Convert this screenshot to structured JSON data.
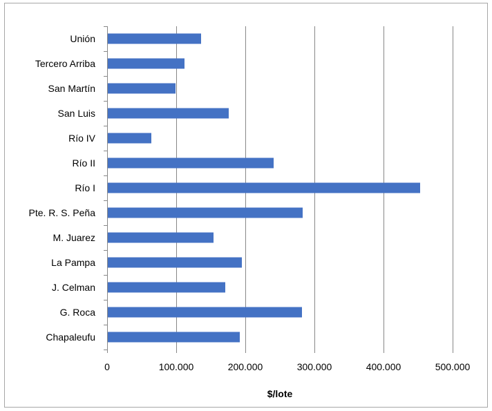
{
  "chart_data": {
    "type": "bar",
    "orientation": "horizontal",
    "categories": [
      "Unión",
      "Tercero Arriba",
      "San Martín",
      "San Luis",
      "Río IV",
      "Río II",
      "Río I",
      "Pte. R. S. Peña",
      "M. Juarez",
      "La Pampa",
      "J. Celman",
      "G. Roca",
      "Chapaleufu"
    ],
    "values": [
      136000,
      112000,
      99000,
      176000,
      64000,
      241000,
      453000,
      283000,
      154000,
      195000,
      171000,
      282000,
      192000
    ],
    "xlabel": "$/lote",
    "ylabel": "",
    "xlim": [
      0,
      500000
    ],
    "xticks": [
      0,
      100000,
      200000,
      300000,
      400000,
      500000
    ],
    "xtick_labels": [
      "0",
      "100.000",
      "200.000",
      "300.000",
      "400.000",
      "500.000"
    ],
    "grid": "vertical-major",
    "legend": "none",
    "colors": {
      "bar": "#4472c4",
      "grid": "#878787",
      "axis": "#878787",
      "frame": "#a6a6a6"
    }
  }
}
